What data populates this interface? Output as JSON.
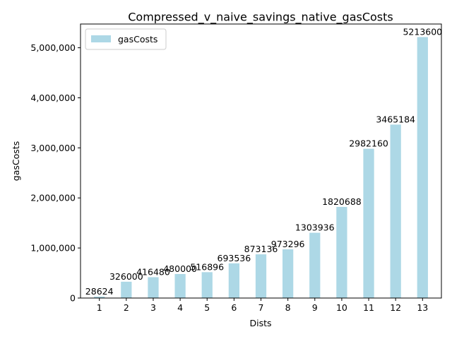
{
  "chart_data": {
    "type": "bar",
    "title": "Compressed_v_naive_savings_native_gasCosts",
    "xlabel": "Dists",
    "ylabel": "gasCosts",
    "categories": [
      "1",
      "2",
      "3",
      "4",
      "5",
      "6",
      "7",
      "8",
      "9",
      "10",
      "11",
      "12",
      "13"
    ],
    "series": [
      {
        "name": "gasCosts",
        "color": "#add8e6",
        "values": [
          28624,
          326000,
          416480,
          480000,
          516896,
          693536,
          873136,
          973296,
          1303936,
          1820688,
          2982160,
          3465184,
          5213600
        ],
        "value_labels": [
          "28624",
          "326000",
          "416480",
          "480000",
          "516896",
          "693536",
          "873136",
          "973296",
          "1303936",
          "1820688",
          "2982160",
          "3465184",
          "5213600"
        ]
      }
    ],
    "ylim": [
      0,
      5474280
    ],
    "yticks": [
      0,
      1000000,
      2000000,
      3000000,
      4000000,
      5000000
    ],
    "ytick_labels": [
      "0",
      "1,000,000",
      "2,000,000",
      "3,000,000",
      "4,000,000",
      "5,000,000"
    ],
    "grid": false,
    "legend": "top-left"
  }
}
